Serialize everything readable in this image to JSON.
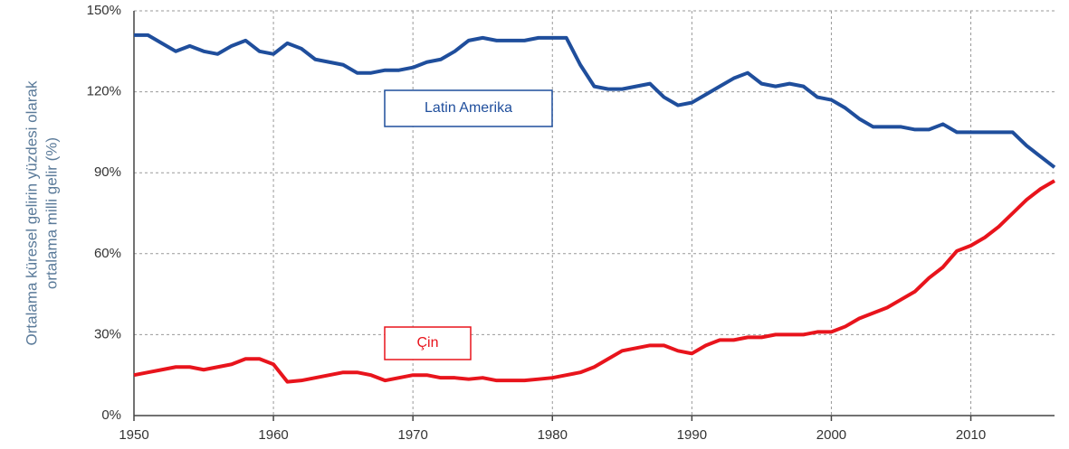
{
  "chart_data": {
    "type": "line",
    "y_label": [
      "Ortalama küresel gelirin yüzdesi olarak",
      "ortalama milli gelir (%)"
    ],
    "x": [
      1950,
      1951,
      1952,
      1953,
      1954,
      1955,
      1956,
      1957,
      1958,
      1959,
      1960,
      1961,
      1962,
      1963,
      1964,
      1965,
      1966,
      1967,
      1968,
      1969,
      1970,
      1971,
      1972,
      1973,
      1974,
      1975,
      1976,
      1977,
      1978,
      1979,
      1980,
      1981,
      1982,
      1983,
      1984,
      1985,
      1986,
      1987,
      1988,
      1989,
      1990,
      1991,
      1992,
      1993,
      1994,
      1995,
      1996,
      1997,
      1998,
      1999,
      2000,
      2001,
      2002,
      2003,
      2004,
      2005,
      2006,
      2007,
      2008,
      2009,
      2010,
      2011,
      2012,
      2013,
      2014,
      2015,
      2016
    ],
    "series": [
      {
        "name": "Latin Amerika",
        "color": "#1f4e9c",
        "values": [
          141,
          141,
          138,
          135,
          137,
          135,
          134,
          137,
          139,
          135,
          134,
          138,
          136,
          132,
          131,
          130,
          127,
          127,
          128,
          128,
          129,
          131,
          132,
          135,
          139,
          140,
          139,
          139,
          139,
          140,
          140,
          140,
          130,
          122,
          121,
          121,
          122,
          123,
          118,
          115,
          116,
          119,
          122,
          125,
          127,
          123,
          122,
          123,
          122,
          118,
          117,
          114,
          110,
          107,
          107,
          107,
          106,
          106,
          108,
          105,
          105,
          105,
          105,
          105,
          100,
          96,
          92
        ]
      },
      {
        "name": "Çin",
        "color": "#e8141c",
        "values": [
          15,
          16,
          17,
          18,
          18,
          17,
          18,
          19,
          21,
          21,
          19,
          12.5,
          13,
          14,
          15,
          16,
          16,
          15,
          13,
          14,
          15,
          15,
          14,
          14,
          13.5,
          14,
          13,
          13,
          13,
          13.5,
          14,
          15,
          16,
          18,
          21,
          24,
          25,
          26,
          26,
          24,
          23,
          26,
          28,
          28,
          29,
          29,
          30,
          30,
          30,
          31,
          31,
          33,
          36,
          38,
          40,
          43,
          46,
          51,
          55,
          61,
          63,
          66,
          70,
          75,
          80,
          84,
          87
        ]
      }
    ],
    "xlim": [
      1950,
      2016
    ],
    "xticks": [
      1950,
      1960,
      1970,
      1980,
      1990,
      2000,
      2010
    ],
    "ylim": [
      0,
      150
    ],
    "yticks": [
      {
        "value": 0,
        "label": "0%"
      },
      {
        "value": 30,
        "label": "30%"
      },
      {
        "value": 60,
        "label": "60%"
      },
      {
        "value": 90,
        "label": "90%"
      },
      {
        "value": 120,
        "label": "120%"
      },
      {
        "value": 150,
        "label": "150%"
      }
    ],
    "grid": true
  }
}
